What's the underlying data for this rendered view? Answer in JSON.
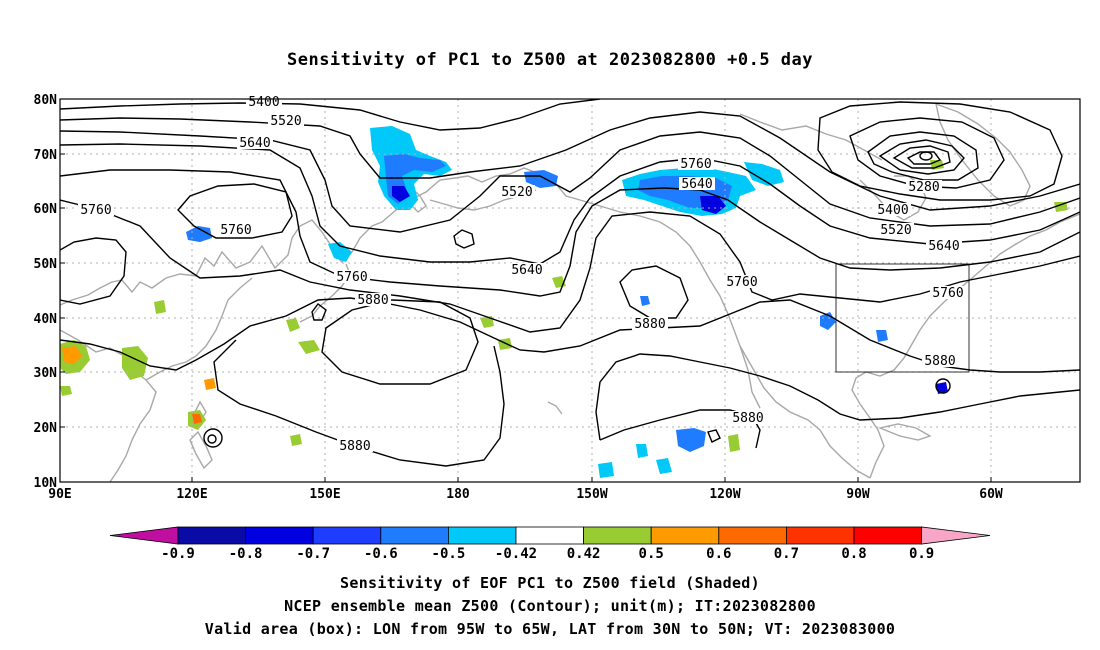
{
  "title": "Sensitivity of PC1 to Z500 at 2023082800 +0.5 day",
  "captions": [
    "Sensitivity of EOF PC1 to Z500 field (Shaded)",
    "NCEP ensemble mean Z500 (Contour); unit(m); IT:2023082800",
    "Valid area (box): LON from 95W to 65W, LAT from 30N to 50N; VT: 2023083000"
  ],
  "lat_labels": [
    "80N",
    "70N",
    "60N",
    "50N",
    "40N",
    "30N",
    "20N",
    "10N"
  ],
  "lon_labels": [
    "90E",
    "120E",
    "150E",
    "180",
    "150W",
    "120W",
    "90W",
    "60W"
  ],
  "contour_labels": [
    "5400",
    "5520",
    "5640",
    "5760",
    "5760",
    "5520",
    "5640",
    "5760",
    "5640",
    "5760",
    "5880",
    "5880",
    "5760",
    "5880",
    "5880",
    "5280",
    "5400",
    "5520",
    "5640",
    "5760",
    "5880"
  ],
  "colorbar": {
    "ticks": [
      "-0.9",
      "-0.8",
      "-0.7",
      "-0.6",
      "-0.5",
      "-0.42",
      "0.42",
      "0.5",
      "0.6",
      "0.7",
      "0.8",
      "0.9"
    ],
    "colors": [
      "#c00fa0",
      "#0a0aa6",
      "#0000e0",
      "#1f3dff",
      "#1f7cff",
      "#00c8f8",
      "#ffffff",
      "#99cc33",
      "#ff9a00",
      "#ff6a00",
      "#ff3300",
      "#ff0000",
      "#f7a6c8"
    ]
  },
  "valid_box": {
    "lon_range": [
      "95W",
      "65W"
    ],
    "lat_range": [
      "30N",
      "50N"
    ]
  },
  "colors": {
    "contour": "#000000",
    "coastline": "#a8a8a8",
    "grid": "#b0b0b0"
  }
}
